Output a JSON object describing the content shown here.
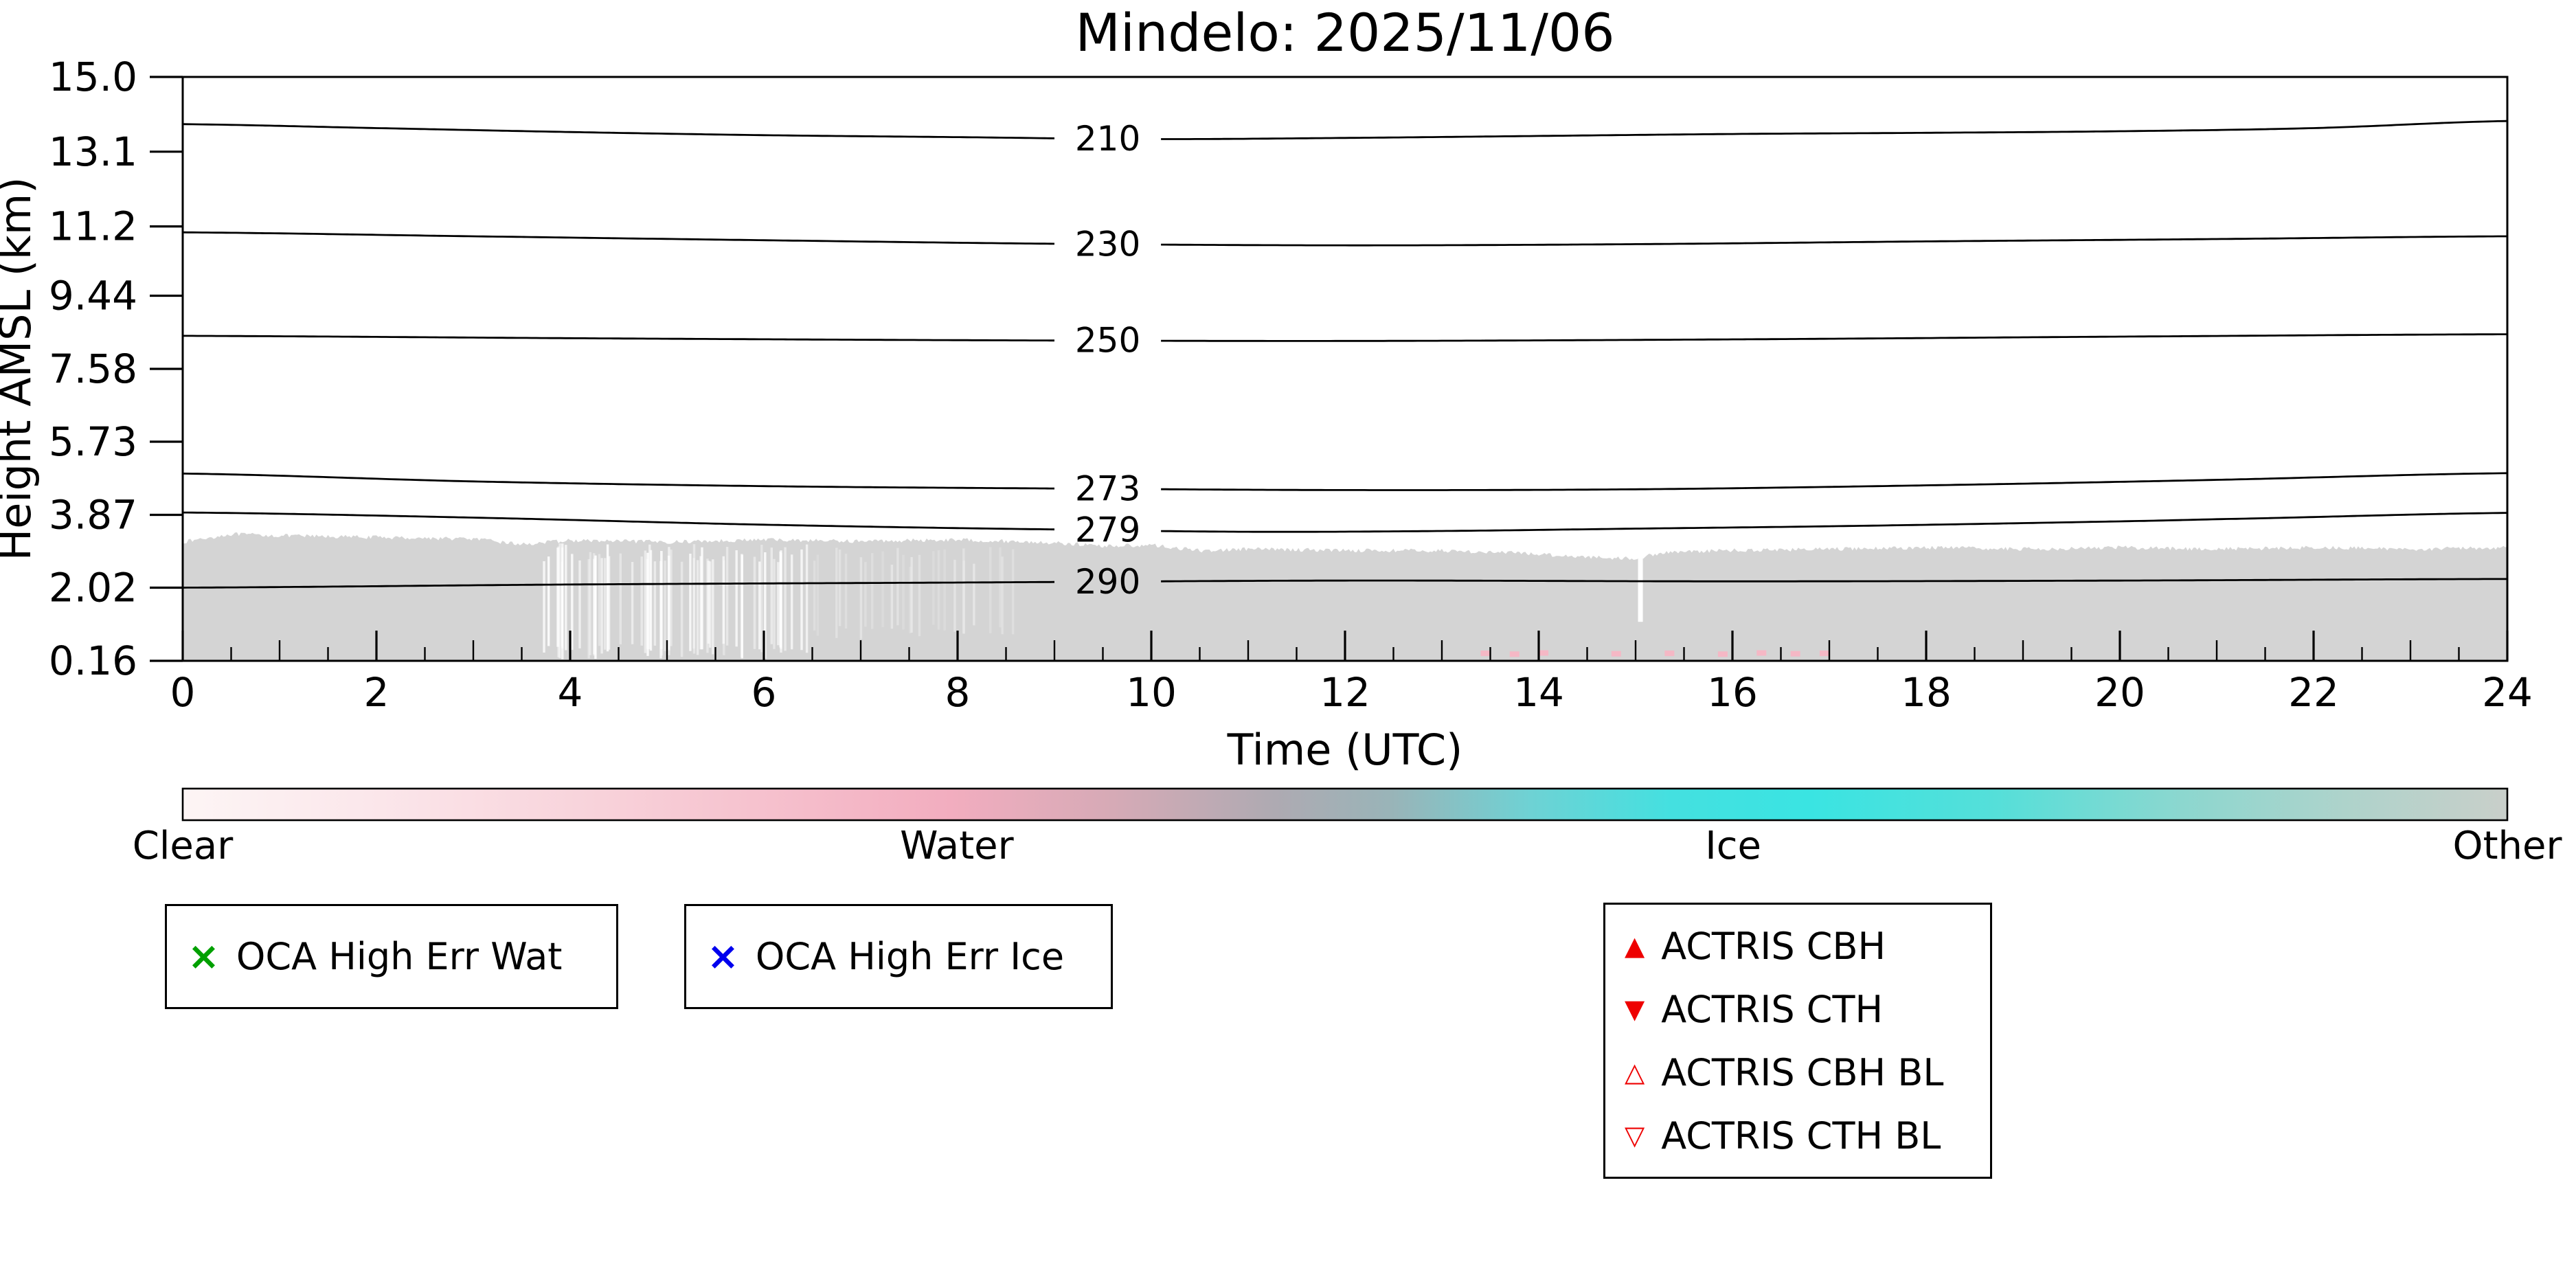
{
  "title": "Mindelo: 2025/11/06",
  "axes": {
    "ylabel": "Height AMSL (km)",
    "xlabel": "Time (UTC)"
  },
  "chart_data": {
    "type": "heatmap",
    "title": "Mindelo: 2025/11/06",
    "xlabel": "Time (UTC)",
    "ylabel": "Height AMSL (km)",
    "x_range_hours": [
      0,
      24
    ],
    "height_range_km": [
      0.16,
      15.0
    ],
    "yticks": [
      {
        "v": 15.0,
        "label": "15.0"
      },
      {
        "v": 13.1,
        "label": "13.1"
      },
      {
        "v": 11.2,
        "label": "11.2"
      },
      {
        "v": 9.44,
        "label": "9.44"
      },
      {
        "v": 7.58,
        "label": "7.58"
      },
      {
        "v": 5.73,
        "label": "5.73"
      },
      {
        "v": 3.87,
        "label": "3.87"
      },
      {
        "v": 2.02,
        "label": "2.02"
      },
      {
        "v": 0.16,
        "label": "0.16"
      }
    ],
    "xticks": [
      {
        "v": 0,
        "label": "0"
      },
      {
        "v": 2,
        "label": "2"
      },
      {
        "v": 4,
        "label": "4"
      },
      {
        "v": 6,
        "label": "6"
      },
      {
        "v": 8,
        "label": "8"
      },
      {
        "v": 10,
        "label": "10"
      },
      {
        "v": 12,
        "label": "12"
      },
      {
        "v": 14,
        "label": "14"
      },
      {
        "v": 16,
        "label": "16"
      },
      {
        "v": 18,
        "label": "18"
      },
      {
        "v": 20,
        "label": "20"
      },
      {
        "v": 22,
        "label": "22"
      },
      {
        "v": 24,
        "label": "24"
      }
    ],
    "minor_xtick_step_hours": 0.5,
    "contours_kelvin": [
      {
        "label": "210",
        "label_t": 9.55,
        "points": [
          [
            0,
            13.8
          ],
          [
            2,
            13.7
          ],
          [
            4,
            13.6
          ],
          [
            6,
            13.52
          ],
          [
            8,
            13.47
          ],
          [
            10,
            13.42
          ],
          [
            12,
            13.45
          ],
          [
            14,
            13.5
          ],
          [
            16,
            13.55
          ],
          [
            18,
            13.58
          ],
          [
            20,
            13.62
          ],
          [
            22,
            13.7
          ],
          [
            24,
            13.88
          ]
        ]
      },
      {
        "label": "230",
        "label_t": 9.55,
        "points": [
          [
            0,
            11.05
          ],
          [
            3,
            10.95
          ],
          [
            6,
            10.85
          ],
          [
            9,
            10.76
          ],
          [
            12,
            10.72
          ],
          [
            15,
            10.75
          ],
          [
            18,
            10.82
          ],
          [
            21,
            10.88
          ],
          [
            24,
            10.95
          ]
        ]
      },
      {
        "label": "250",
        "label_t": 9.55,
        "points": [
          [
            0,
            8.42
          ],
          [
            4,
            8.36
          ],
          [
            8,
            8.31
          ],
          [
            12,
            8.29
          ],
          [
            16,
            8.33
          ],
          [
            20,
            8.4
          ],
          [
            24,
            8.46
          ]
        ]
      },
      {
        "label": "273",
        "label_t": 9.55,
        "points": [
          [
            0,
            4.92
          ],
          [
            3,
            4.72
          ],
          [
            6,
            4.6
          ],
          [
            9,
            4.54
          ],
          [
            12,
            4.5
          ],
          [
            15,
            4.52
          ],
          [
            18,
            4.62
          ],
          [
            21,
            4.76
          ],
          [
            24,
            4.93
          ]
        ]
      },
      {
        "label": "279",
        "label_t": 9.55,
        "points": [
          [
            0,
            3.93
          ],
          [
            3,
            3.8
          ],
          [
            6,
            3.62
          ],
          [
            9,
            3.5
          ],
          [
            11,
            3.44
          ],
          [
            13,
            3.46
          ],
          [
            15,
            3.52
          ],
          [
            17,
            3.58
          ],
          [
            19,
            3.66
          ],
          [
            21,
            3.76
          ],
          [
            24,
            3.92
          ]
        ]
      },
      {
        "label": "290",
        "label_t": 9.55,
        "points": [
          [
            0,
            2.02
          ],
          [
            4,
            2.1
          ],
          [
            8,
            2.15
          ],
          [
            12,
            2.2
          ],
          [
            16,
            2.18
          ],
          [
            20,
            2.2
          ],
          [
            24,
            2.24
          ]
        ]
      }
    ],
    "classified_region": {
      "class": "Other",
      "color": "#d4d4d4",
      "base_km": 0.16,
      "top_boundary_km": [
        [
          0,
          3.18
        ],
        [
          0.5,
          3.38
        ],
        [
          1,
          3.34
        ],
        [
          2,
          3.3
        ],
        [
          3,
          3.26
        ],
        [
          3.5,
          3.12
        ],
        [
          4,
          3.22
        ],
        [
          5,
          3.18
        ],
        [
          6,
          3.24
        ],
        [
          7,
          3.2
        ],
        [
          8,
          3.24
        ],
        [
          9,
          3.16
        ],
        [
          9.5,
          3.08
        ],
        [
          10,
          3.1
        ],
        [
          10.5,
          2.96
        ],
        [
          11,
          3.0
        ],
        [
          12,
          2.97
        ],
        [
          13,
          2.96
        ],
        [
          13.8,
          2.9
        ],
        [
          14.5,
          2.8
        ],
        [
          15,
          2.76
        ],
        [
          15.3,
          2.92
        ],
        [
          16,
          2.97
        ],
        [
          17,
          3.0
        ],
        [
          18,
          3.04
        ],
        [
          19,
          3.0
        ],
        [
          20,
          3.04
        ],
        [
          21,
          3.0
        ],
        [
          22,
          3.04
        ],
        [
          23,
          3.0
        ],
        [
          24,
          3.04
        ]
      ]
    },
    "clear_streak_bands": [
      {
        "t_from": 3.7,
        "t_to": 6.45,
        "count": 70,
        "top_km": 2.9,
        "bottom_km": 0.4,
        "opacity_min": 0.35,
        "opacity_max": 0.9
      },
      {
        "t_from": 6.5,
        "t_to": 8.7,
        "count": 26,
        "top_km": 2.8,
        "bottom_km": 0.9,
        "opacity_min": 0.15,
        "opacity_max": 0.4
      }
    ],
    "region_gap": {
      "t": 15.05,
      "bottom_km": 1.15
    },
    "water_specks": {
      "color": "#f5b8c5",
      "points": [
        [
          13.45,
          0.35
        ],
        [
          13.75,
          0.33
        ],
        [
          14.05,
          0.36
        ],
        [
          14.8,
          0.34
        ],
        [
          15.35,
          0.35
        ],
        [
          15.9,
          0.33
        ],
        [
          16.3,
          0.36
        ],
        [
          16.65,
          0.34
        ],
        [
          16.95,
          0.35
        ]
      ]
    },
    "colorbar": {
      "labels": [
        {
          "text": "Clear",
          "pos": 0
        },
        {
          "text": "Water",
          "pos": 0.333
        },
        {
          "text": "Ice",
          "pos": 0.667
        },
        {
          "text": "Other",
          "pos": 1
        }
      ],
      "stops": [
        [
          0.0,
          "#fdf5f5"
        ],
        [
          0.08,
          "#fbe7eb"
        ],
        [
          0.18,
          "#f8d2da"
        ],
        [
          0.27,
          "#f5bcca"
        ],
        [
          0.33,
          "#f2adbf"
        ],
        [
          0.4,
          "#d6aab6"
        ],
        [
          0.47,
          "#aeaab2"
        ],
        [
          0.52,
          "#99b4b8"
        ],
        [
          0.58,
          "#6ed2d4"
        ],
        [
          0.64,
          "#44e0e0"
        ],
        [
          0.7,
          "#3ae4e2"
        ],
        [
          0.78,
          "#55dfd9"
        ],
        [
          0.86,
          "#8cd7cf"
        ],
        [
          0.93,
          "#aed3cb"
        ],
        [
          1.0,
          "#c9cfca"
        ]
      ]
    }
  },
  "legends": {
    "oca_wat": {
      "glyph": "×",
      "color": "#00a000",
      "label": "OCA High Err Wat"
    },
    "oca_ice": {
      "glyph": "×",
      "color": "#0000ee",
      "label": "OCA High Err Ice"
    },
    "actris": {
      "color": "#ee0000",
      "items": [
        {
          "glyph": "▲",
          "label": "ACTRIS CBH"
        },
        {
          "glyph": "▼",
          "label": "ACTRIS CTH"
        },
        {
          "glyph": "△",
          "label": "ACTRIS CBH BL"
        },
        {
          "glyph": "▽",
          "label": "ACTRIS CTH BL"
        }
      ]
    }
  }
}
